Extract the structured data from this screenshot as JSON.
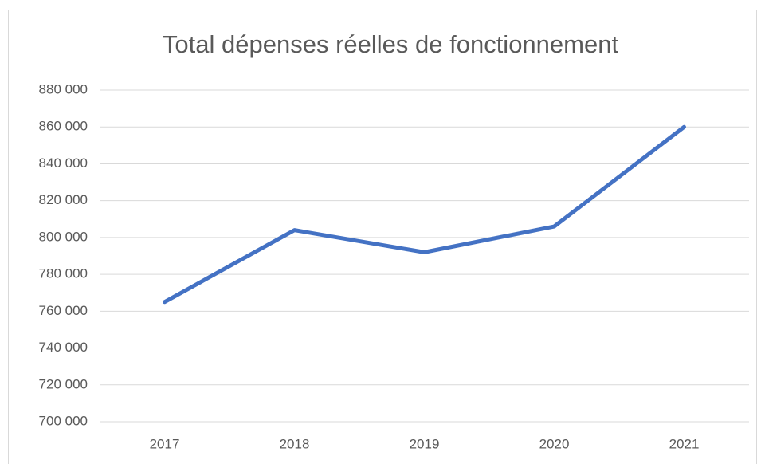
{
  "chart_data": {
    "type": "line",
    "title": "Total dépenses réelles de fonctionnement",
    "categories": [
      "2017",
      "2018",
      "2019",
      "2020",
      "2021"
    ],
    "series": [
      {
        "name": "Total dépenses réelles de fonctionnement",
        "color": "#4472c4",
        "values": [
          765000,
          804000,
          792000,
          806000,
          860000
        ]
      }
    ],
    "ylim": [
      700000,
      880000
    ],
    "yticks": [
      {
        "value": 700000,
        "label": "700 000"
      },
      {
        "value": 720000,
        "label": "720 000"
      },
      {
        "value": 740000,
        "label": "740 000"
      },
      {
        "value": 760000,
        "label": "760 000"
      },
      {
        "value": 780000,
        "label": "780 000"
      },
      {
        "value": 800000,
        "label": "800 000"
      },
      {
        "value": 820000,
        "label": "820 000"
      },
      {
        "value": 840000,
        "label": "840 000"
      },
      {
        "value": 860000,
        "label": "860 000"
      },
      {
        "value": 880000,
        "label": "880 000"
      }
    ],
    "grid": true
  }
}
